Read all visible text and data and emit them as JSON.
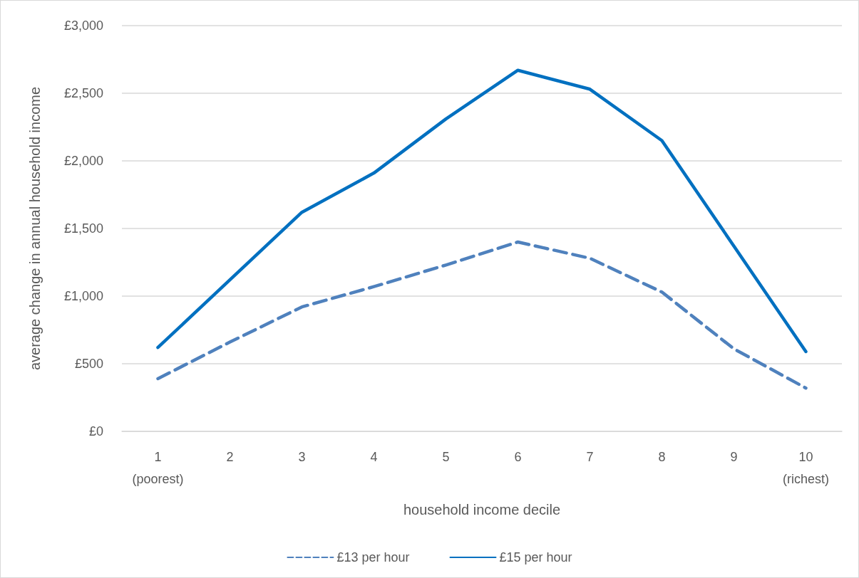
{
  "chart_data": {
    "type": "line",
    "xlabel": "household income decile",
    "ylabel": "average change in annual household income",
    "categories": [
      "1\n(poorest)",
      "2",
      "3",
      "4",
      "5",
      "6",
      "7",
      "8",
      "9",
      "10\n(richest)"
    ],
    "series": [
      {
        "name": "£13 per hour",
        "color": "#4f81bd",
        "line_style": "dashed",
        "values": [
          390,
          660,
          920,
          1070,
          1230,
          1400,
          1280,
          1030,
          610,
          320
        ]
      },
      {
        "name": "£15 per hour",
        "color": "#0070c0",
        "line_style": "solid",
        "values": [
          620,
          1120,
          1620,
          1910,
          2310,
          2670,
          2530,
          2150,
          1370,
          590
        ]
      }
    ],
    "ylim": [
      0,
      3000
    ],
    "yticks": [
      {
        "value": 0,
        "label": "£0"
      },
      {
        "value": 500,
        "label": "£500"
      },
      {
        "value": 1000,
        "label": "£1,000"
      },
      {
        "value": 1500,
        "label": "£1,500"
      },
      {
        "value": 2000,
        "label": "£2,000"
      },
      {
        "value": 2500,
        "label": "£2,500"
      },
      {
        "value": 3000,
        "label": "£3,000"
      }
    ],
    "grid": "y",
    "legend": "bottom",
    "marker": "none"
  }
}
